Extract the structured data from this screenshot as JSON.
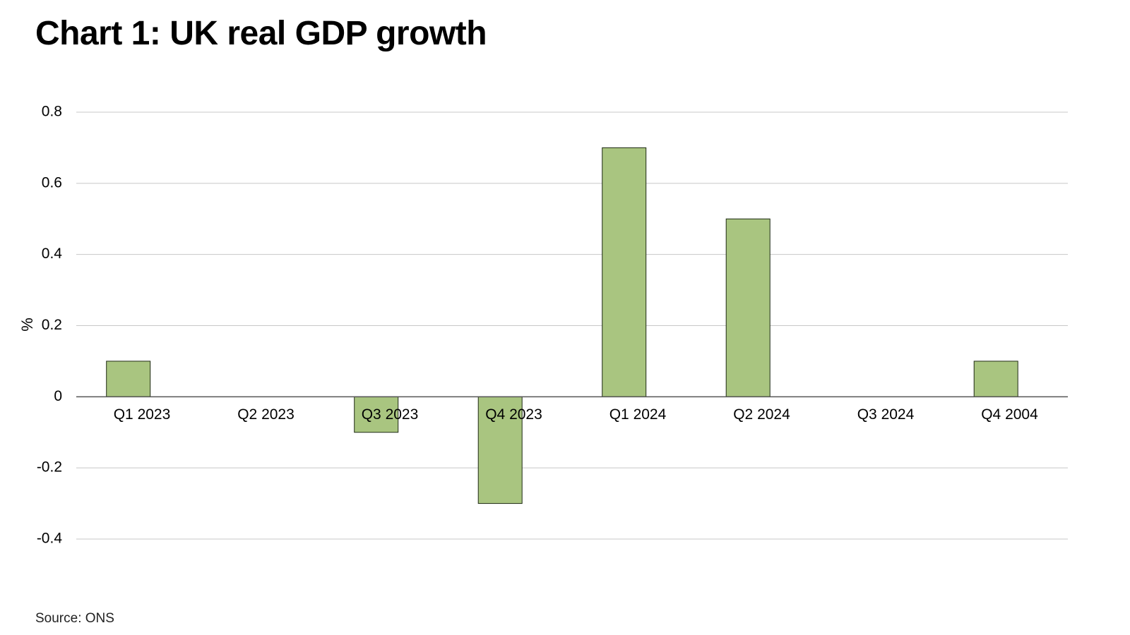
{
  "chart_data": {
    "type": "bar",
    "title": "Chart 1: UK real GDP growth",
    "xlabel": "",
    "ylabel": "%",
    "categories": [
      "Q1 2023",
      "Q2 2023",
      "Q3 2023",
      "Q4 2023",
      "Q1 2024",
      "Q2 2024",
      "Q3 2024",
      "Q4 2004"
    ],
    "values": [
      0.1,
      0.0,
      -0.1,
      -0.3,
      0.7,
      0.5,
      0.0,
      0.1
    ],
    "ylim": [
      -0.4,
      0.8
    ],
    "yticks": [
      0.8,
      0.6,
      0.4,
      0.2,
      0,
      -0.2,
      -0.4
    ],
    "ytick_labels": [
      "0.8",
      "0.6",
      "0.4",
      "0.2",
      "0",
      "-0.2",
      "-0.4"
    ],
    "grid": true,
    "legend": "none",
    "source": "Source: ONS"
  },
  "colors": {
    "bar_fill": "#a9c580",
    "bar_stroke": "#1e2a14",
    "grid": "#c8c8c8",
    "axis": "#555555"
  }
}
